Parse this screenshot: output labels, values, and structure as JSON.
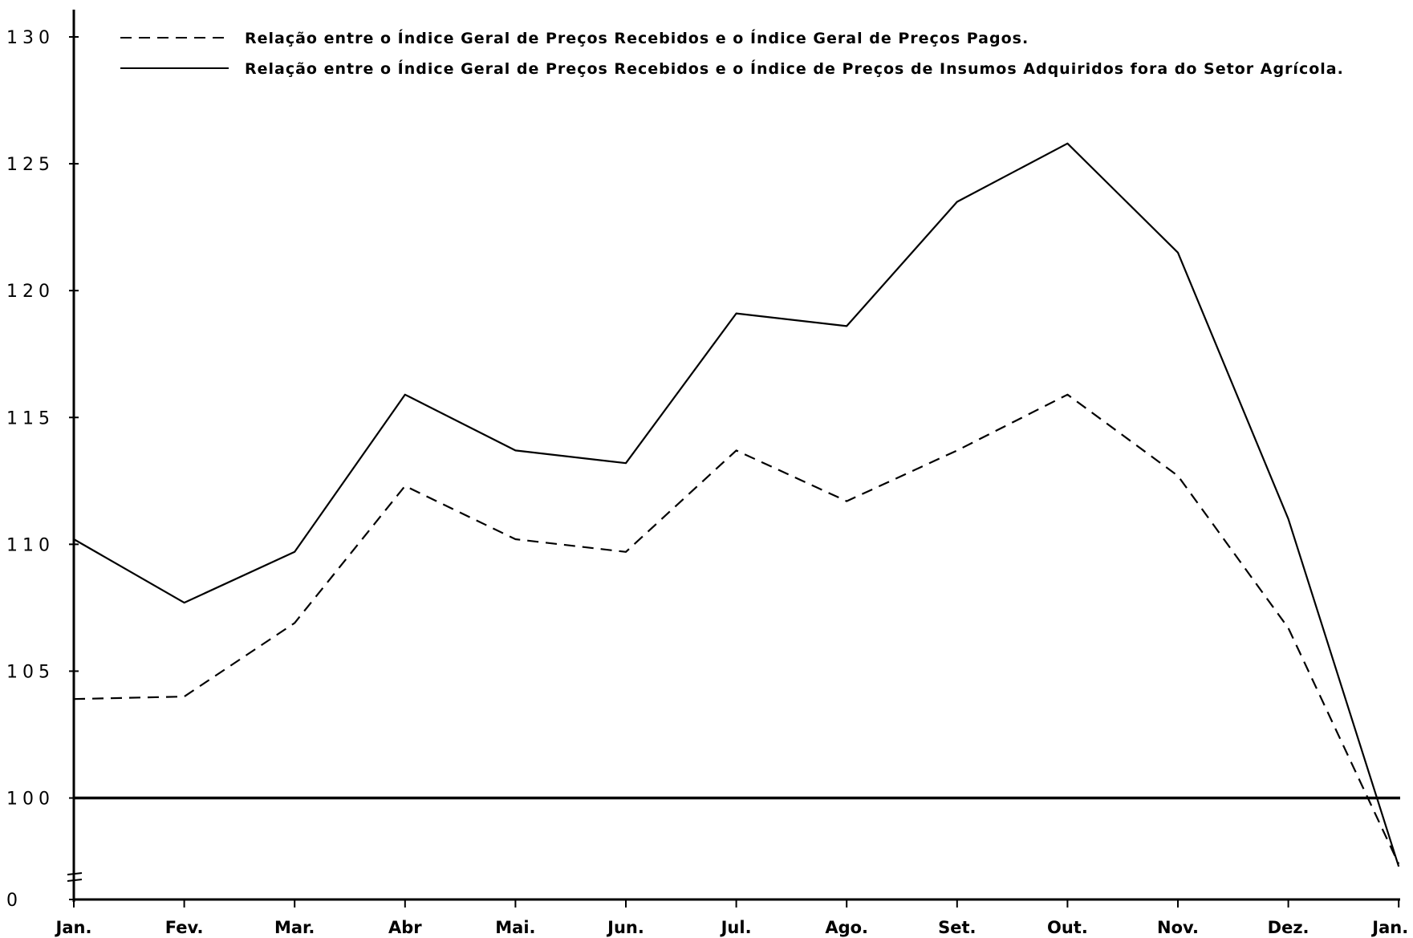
{
  "chart_data": {
    "type": "line",
    "categories": [
      "Jan.",
      "Fev.",
      "Mar.",
      "Abr",
      "Mai.",
      "Jun.",
      "Jul.",
      "Ago.",
      "Set.",
      "Out.",
      "Nov.",
      "Dez.",
      "Jan."
    ],
    "y_ticks": [
      "0",
      "100",
      "105",
      "110",
      "115",
      "120",
      "125",
      "130"
    ],
    "ylim": [
      96,
      130
    ],
    "axis_break": true,
    "reference_line": 100,
    "series": [
      {
        "name": "Relação entre o Índice Geral de Preços Recebidos e o Índice Geral de Preços Pagos.",
        "style": "dashed",
        "values": [
          103.9,
          104.0,
          106.9,
          112.3,
          110.2,
          109.7,
          113.7,
          111.7,
          113.7,
          115.9,
          112.7,
          106.7,
          97.4
        ]
      },
      {
        "name": "Relação entre o Índice Geral de Preços Recebidos e o Índice de Preços de Insumos Adquiridos fora do Setor Agrícola.",
        "style": "solid",
        "values": [
          110.2,
          107.7,
          109.7,
          115.9,
          113.7,
          113.2,
          119.1,
          118.6,
          123.5,
          125.8,
          121.5,
          111.0,
          97.3
        ]
      }
    ],
    "legend_position": "top",
    "grid": false,
    "line_color": "#000000"
  }
}
